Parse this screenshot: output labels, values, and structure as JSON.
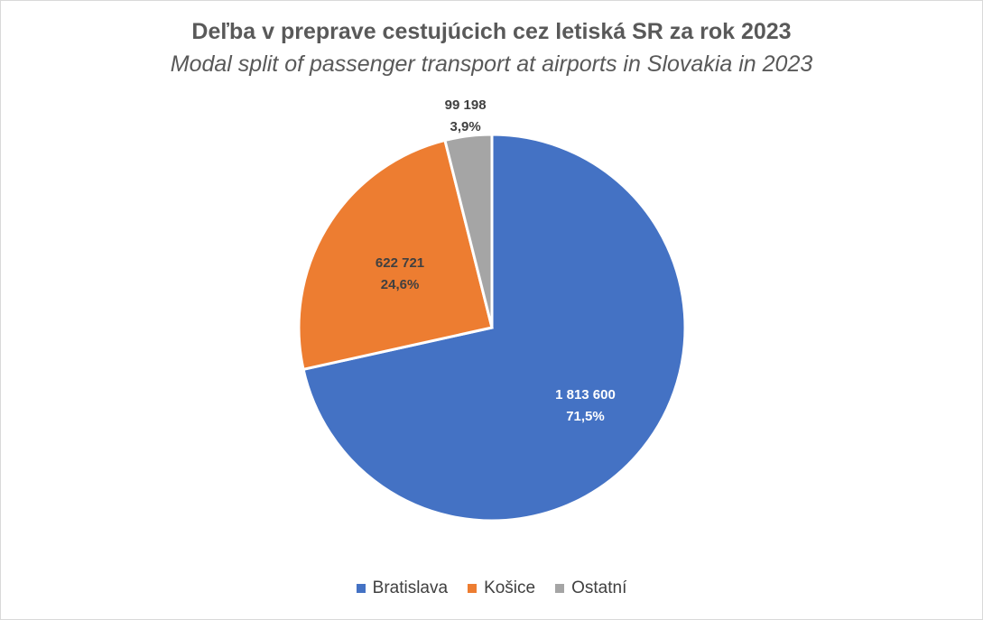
{
  "chart_data": {
    "type": "pie",
    "title": "Deľba v preprave cestujúcich cez letiská SR za rok 2023",
    "subtitle": "Modal split of passenger transport at airports in Slovakia in 2023",
    "slices": [
      {
        "label": "Bratislava",
        "value": 1813600,
        "value_text": "1 813 600",
        "percent_text": "71,5%",
        "color": "#4472c4",
        "label_color": "#ffffff"
      },
      {
        "label": "Košice",
        "value": 622721,
        "value_text": "622 721",
        "percent_text": "24,6%",
        "color": "#ed7d31",
        "label_color": "#404040"
      },
      {
        "label": "Ostatní",
        "value": 99198,
        "value_text": "99 198",
        "percent_text": "3,9%",
        "color": "#a5a5a5",
        "label_color": "#404040"
      }
    ],
    "legend_position": "bottom"
  }
}
